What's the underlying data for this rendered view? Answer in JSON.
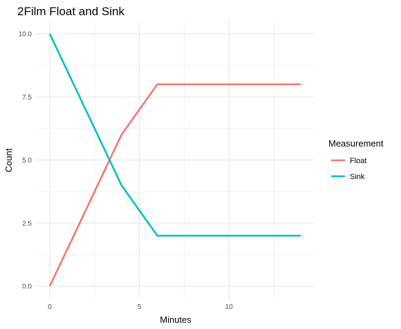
{
  "chart_data": {
    "type": "line",
    "title": "2Film Float and Sink",
    "xlabel": "Minutes",
    "ylabel": "Count",
    "x": [
      0,
      4,
      6,
      8,
      10,
      12,
      14
    ],
    "xlim": [
      0,
      14
    ],
    "ylim": [
      0,
      10
    ],
    "x_ticks": [
      0,
      5,
      10
    ],
    "x_tick_labels": [
      "0",
      "5",
      "10"
    ],
    "y_ticks": [
      0,
      2.5,
      5,
      7.5,
      10
    ],
    "y_tick_labels": [
      "0.0",
      "2.5",
      "5.0",
      "7.5",
      "10.0"
    ],
    "grid": true,
    "legend": {
      "title": "Measurement",
      "position": "right"
    },
    "series": [
      {
        "name": "Float",
        "color": "#F8766D",
        "values": [
          0,
          6,
          8,
          8,
          8,
          8,
          8
        ]
      },
      {
        "name": "Sink",
        "color": "#00BFC4",
        "values": [
          10,
          4,
          2,
          2,
          2,
          2,
          2
        ]
      }
    ]
  }
}
